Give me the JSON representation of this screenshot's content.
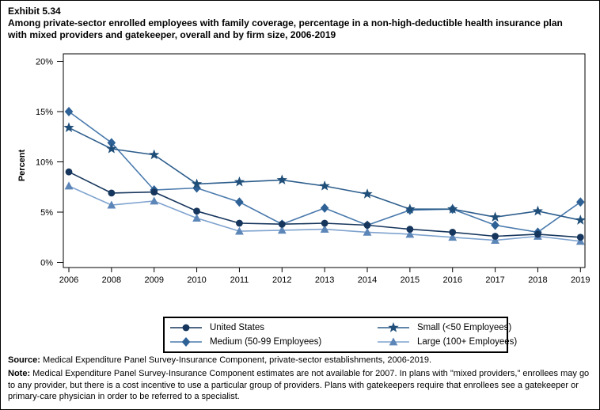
{
  "exhibit": {
    "number": "Exhibit 5.34",
    "title": "Among private-sector enrolled employees with family coverage, percentage in a non-high-deductible health insurance plan with mixed providers and gatekeeper, overall and by firm size, 2006-2019"
  },
  "chart_data": {
    "type": "line",
    "x": [
      2006,
      2008,
      2009,
      2010,
      2011,
      2012,
      2013,
      2014,
      2015,
      2016,
      2017,
      2018,
      2019
    ],
    "ylabel": "Percent",
    "ylim": [
      0,
      20
    ],
    "ytick_values": [
      0,
      5,
      10,
      15,
      20
    ],
    "ytick_labels": [
      "0%",
      "5%",
      "10%",
      "15%",
      "20%"
    ],
    "grid": false,
    "legend_position": "bottom-box",
    "series": [
      {
        "name": "United States",
        "marker": "circle",
        "marker_color": "#17365d",
        "line_color": "#17365d",
        "values": [
          9.0,
          6.9,
          7.0,
          5.1,
          3.9,
          3.8,
          3.9,
          3.7,
          3.3,
          3.0,
          2.6,
          2.8,
          2.5
        ]
      },
      {
        "name": "Medium (50-99 Employees)",
        "marker": "diamond",
        "marker_color": "#2e6195",
        "line_color": "#4a7aad",
        "values": [
          15.0,
          11.9,
          7.2,
          7.4,
          6.0,
          3.8,
          5.4,
          3.7,
          5.2,
          5.3,
          3.7,
          3.0,
          6.0
        ]
      },
      {
        "name": "Small (<50 Employees)",
        "marker": "star",
        "marker_color": "#1f4e79",
        "line_color": "#2c5d8c",
        "values": [
          13.4,
          11.3,
          10.7,
          7.8,
          8.0,
          8.2,
          7.6,
          6.8,
          5.3,
          5.3,
          4.5,
          5.1,
          4.2
        ]
      },
      {
        "name": "Large (100+ Employees)",
        "marker": "triangle",
        "marker_color": "#5d86b8",
        "line_color": "#7fa3cf",
        "values": [
          7.6,
          5.7,
          6.1,
          4.4,
          3.1,
          3.2,
          3.3,
          3.0,
          2.8,
          2.5,
          2.2,
          2.6,
          2.1
        ]
      }
    ]
  },
  "footer": {
    "source_label": "Source:",
    "source_text": " Medical Expenditure Panel Survey-Insurance Component, private-sector establishments, 2006-2019.",
    "note_label": "Note:",
    "note_text": " Medical Expenditure Panel Survey-Insurance Component estimates are not available for 2007. In plans with \"mixed providers,\" enrollees may go to any provider, but there is a cost incentive to use a particular group of providers. Plans with gatekeepers require that enrollees see a gatekeeper or primary-care physician in order to be referred to a specialist."
  }
}
